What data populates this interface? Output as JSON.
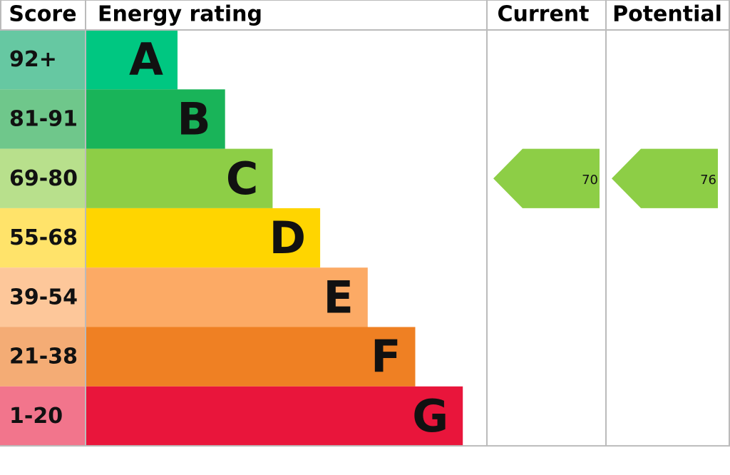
{
  "chart_data": {
    "type": "epc",
    "headers": {
      "score": "Score",
      "rating": "Energy rating",
      "current": "Current",
      "potential": "Potential"
    },
    "bands": [
      {
        "score": "92+",
        "letter": "A",
        "color": "#00c781",
        "light": "#66c8a2"
      },
      {
        "score": "81-91",
        "letter": "B",
        "color": "#19b459",
        "light": "#6fc78b"
      },
      {
        "score": "69-80",
        "letter": "C",
        "color": "#8dce46",
        "light": "#b8e08c"
      },
      {
        "score": "55-68",
        "letter": "D",
        "color": "#ffd500",
        "light": "#ffe36a"
      },
      {
        "score": "39-54",
        "letter": "E",
        "color": "#fcaa65",
        "light": "#fdc79a"
      },
      {
        "score": "21-38",
        "letter": "F",
        "color": "#ef8023",
        "light": "#f4ac75"
      },
      {
        "score": "1-20",
        "letter": "G",
        "color": "#e9153b",
        "light": "#f2758c"
      }
    ],
    "current": 70,
    "potential": 76
  }
}
